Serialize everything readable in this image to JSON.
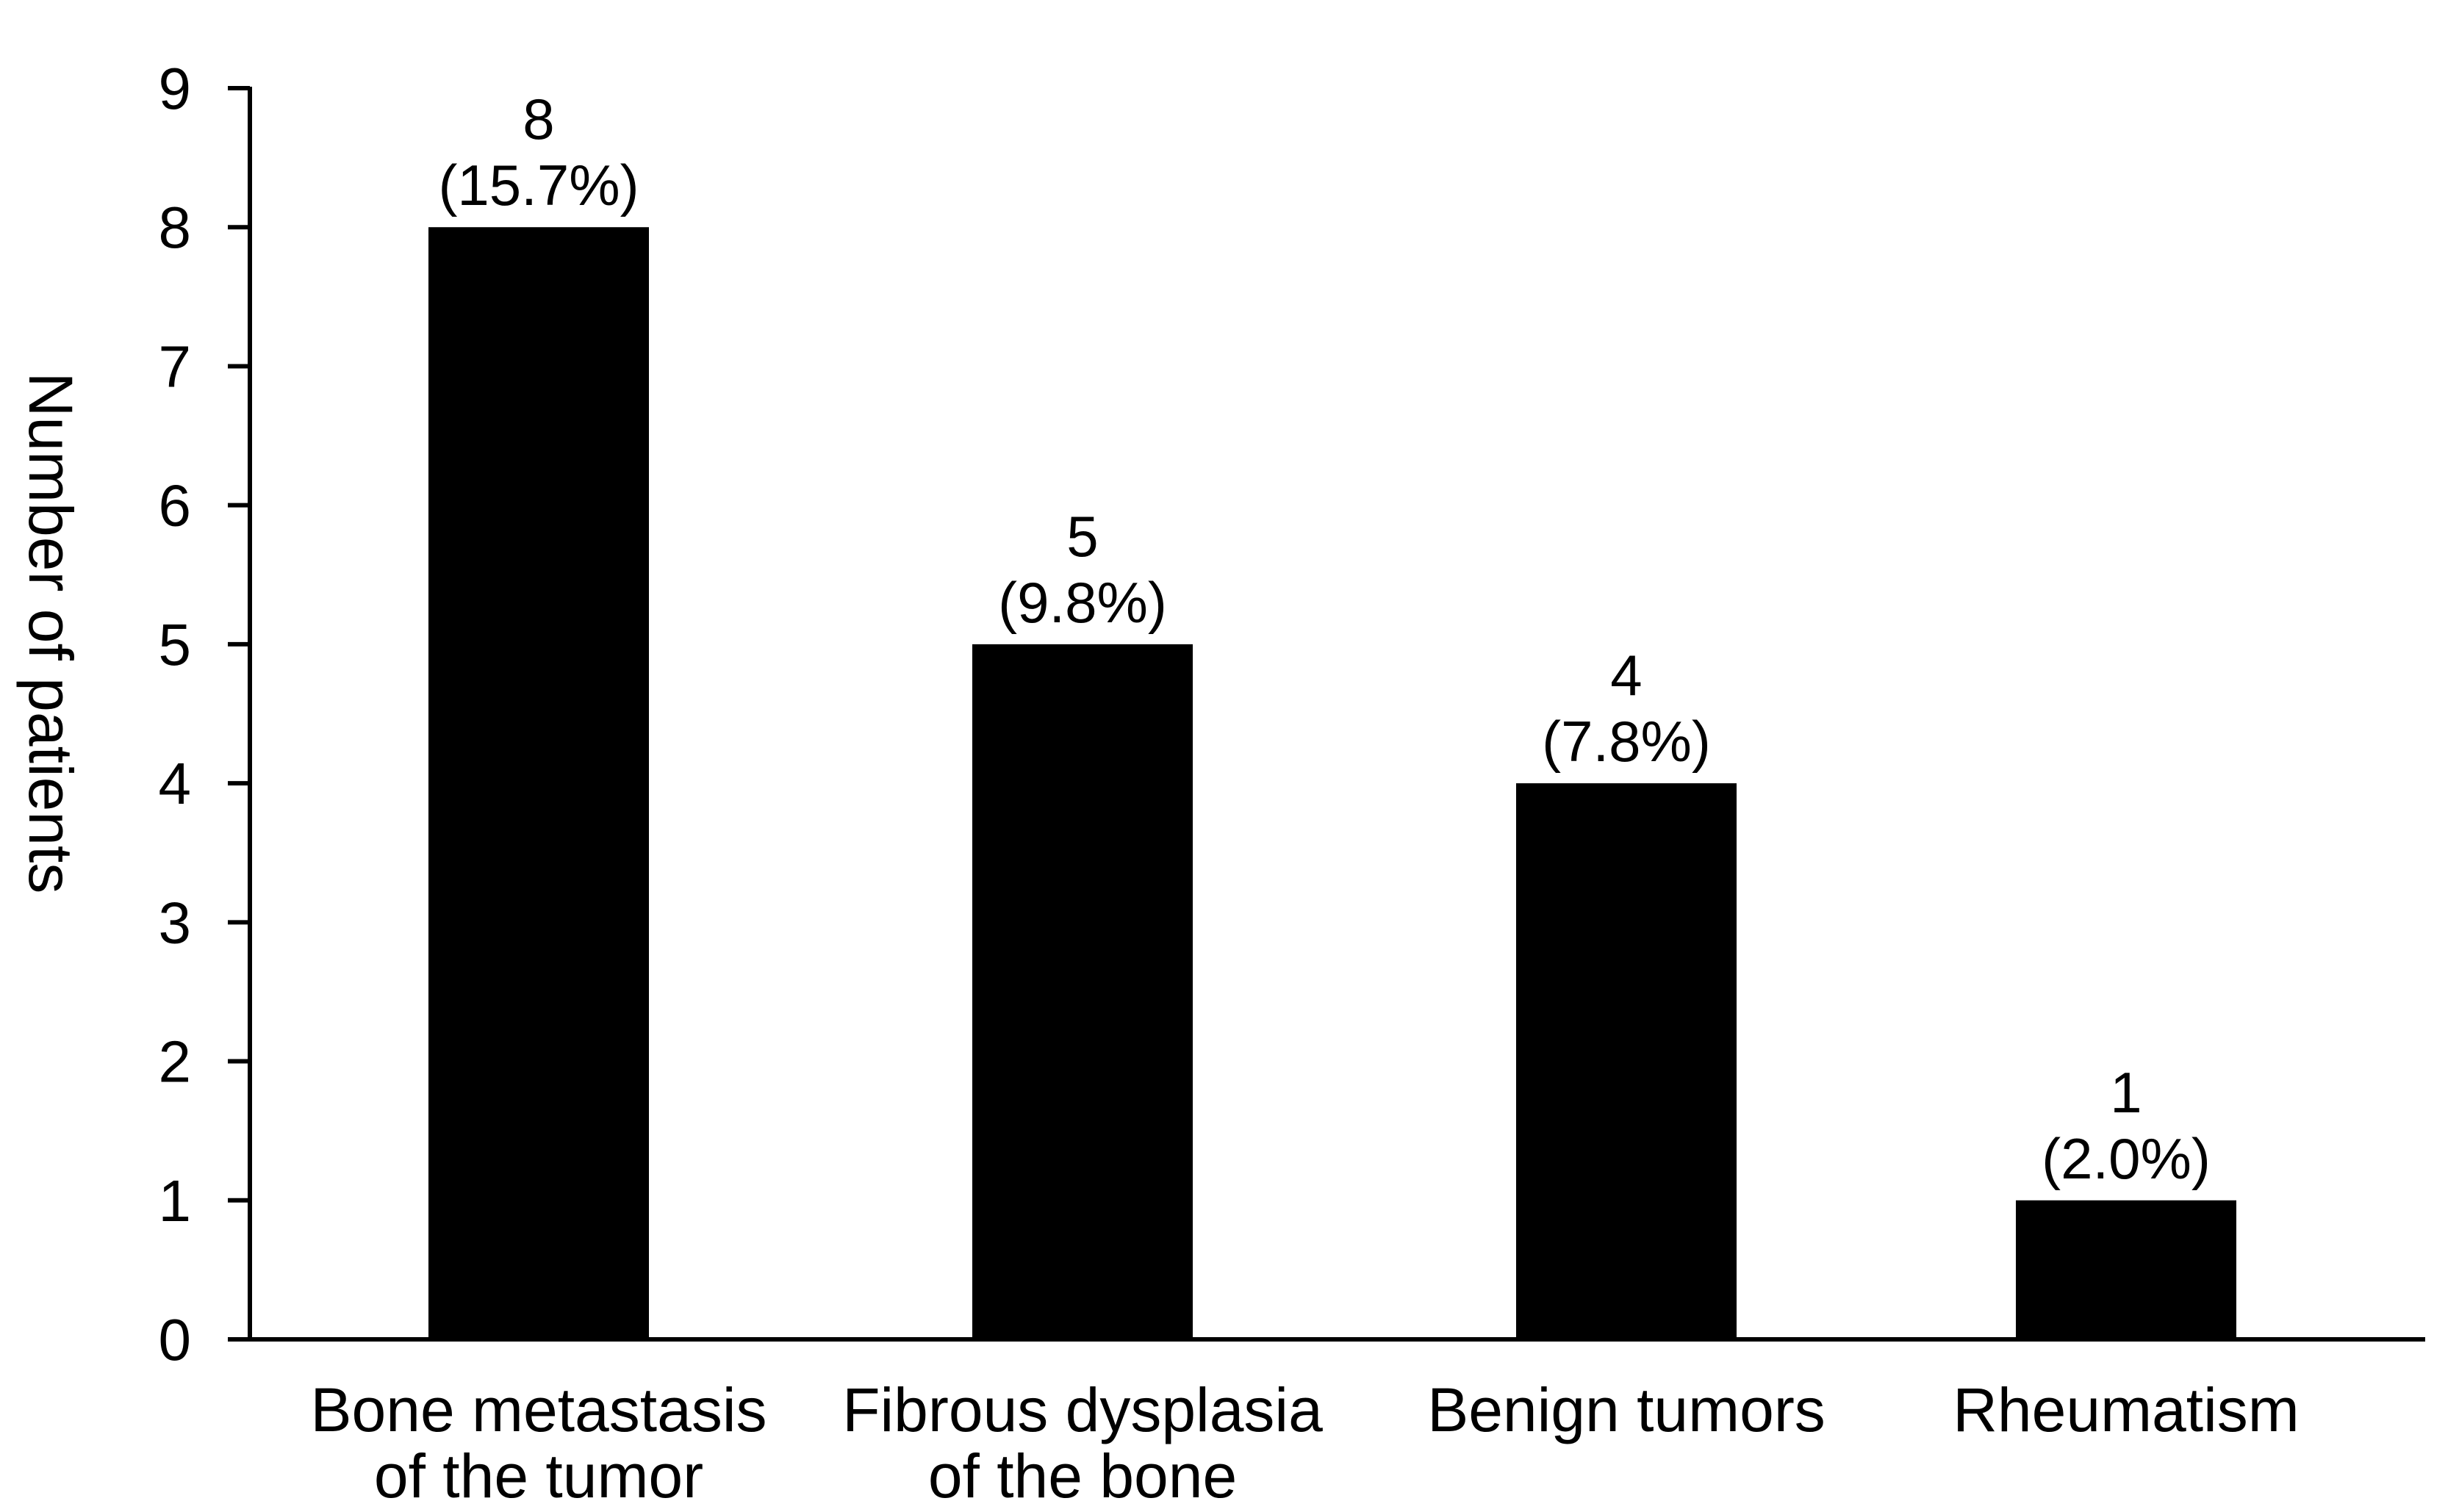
{
  "chart_data": {
    "type": "bar",
    "categories": [
      [
        "Bone metastasis",
        "of the tumor"
      ],
      [
        "Fibrous dysplasia",
        "of the bone"
      ],
      [
        "Benign tumors"
      ],
      [
        "Rheumatism"
      ]
    ],
    "values": [
      8,
      5,
      4,
      1
    ],
    "data_labels": [
      [
        "8",
        "(15.7%)"
      ],
      [
        "5",
        "(9.8%)"
      ],
      [
        "4",
        "(7.8%)"
      ],
      [
        "1",
        "(2.0%)"
      ]
    ],
    "title": "",
    "xlabel": "",
    "ylabel": "Number of patients",
    "ylim": [
      0,
      9
    ],
    "yticks": [
      0,
      1,
      2,
      3,
      4,
      5,
      6,
      7,
      8,
      9
    ],
    "grid": false,
    "bar_color": "#000000",
    "axis_color": "#000000"
  }
}
